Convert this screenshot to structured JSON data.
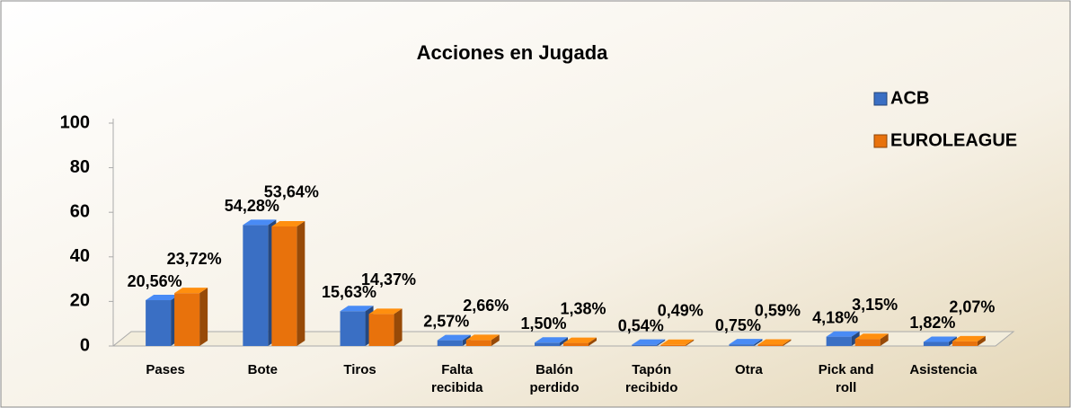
{
  "chart_data": {
    "type": "bar3d",
    "title": "Acciones en Jugada",
    "categories": [
      "Pases",
      "Bote",
      "Tiros",
      "Falta recibida",
      "Balón perdido",
      "Tapón recibido",
      "Otra",
      "Pick and roll",
      "Asistencia"
    ],
    "series": [
      {
        "name": "ACB",
        "color": "#3a6fc4",
        "values": [
          20.56,
          54.28,
          15.63,
          2.57,
          1.5,
          0.54,
          0.75,
          4.18,
          1.82
        ],
        "value_labels": [
          "20,56%",
          "54,28%",
          "15,63%",
          "2,57%",
          "1,50%",
          "0,54%",
          "0,75%",
          "4,18%",
          "1,82%"
        ]
      },
      {
        "name": "EUROLEAGUE",
        "color": "#e8720c",
        "values": [
          23.72,
          53.64,
          14.37,
          2.66,
          1.38,
          0.49,
          0.59,
          3.15,
          2.07
        ],
        "value_labels": [
          "23,72%",
          "53,64%",
          "14,37%",
          "2,66%",
          "1,38%",
          "0,49%",
          "0,59%",
          "3,15%",
          "2,07%"
        ]
      }
    ],
    "ylim": [
      0,
      100
    ],
    "yticks": [
      0,
      20,
      40,
      60,
      80,
      100
    ],
    "legend": "top-right"
  }
}
